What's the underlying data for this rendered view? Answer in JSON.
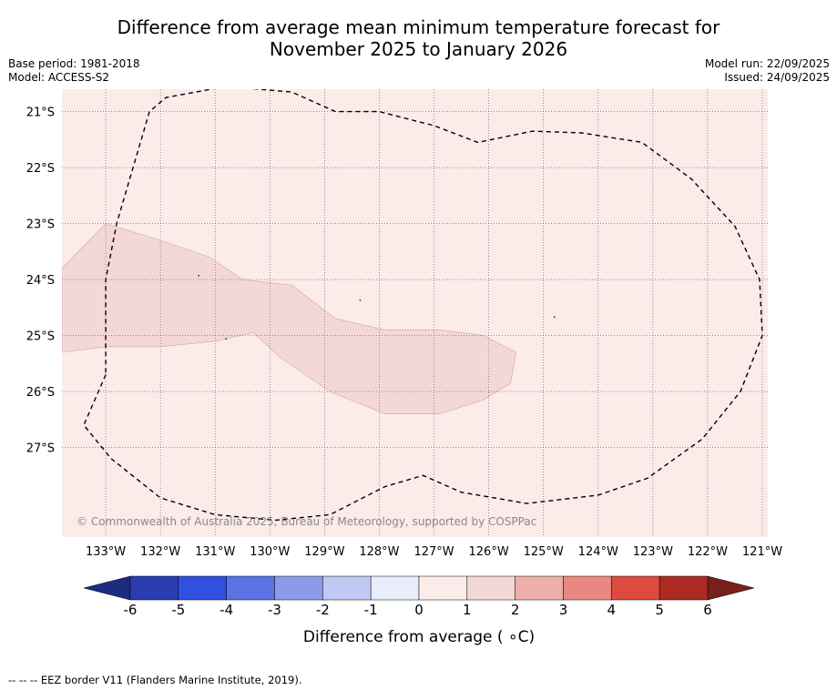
{
  "title": {
    "line1": "Difference from average mean minimum temperature forecast for",
    "line2": "November 2025 to January 2026"
  },
  "meta": {
    "base_period": "Base period: 1981-2018",
    "model": "Model: ACCESS-S2",
    "model_run": "Model run: 22/09/2025",
    "issued": "Issued: 24/09/2025"
  },
  "map": {
    "lon_range": [
      -133.8,
      -120.9
    ],
    "lat_range": [
      -28.6,
      -20.6
    ],
    "longitude_ticks": [
      {
        "value": -133,
        "label": "133°W"
      },
      {
        "value": -132,
        "label": "132°W"
      },
      {
        "value": -131,
        "label": "131°W"
      },
      {
        "value": -130,
        "label": "130°W"
      },
      {
        "value": -129,
        "label": "129°W"
      },
      {
        "value": -128,
        "label": "128°W"
      },
      {
        "value": -127,
        "label": "127°W"
      },
      {
        "value": -126,
        "label": "126°W"
      },
      {
        "value": -125,
        "label": "125°W"
      },
      {
        "value": -124,
        "label": "124°W"
      },
      {
        "value": -123,
        "label": "123°W"
      },
      {
        "value": -122,
        "label": "122°W"
      },
      {
        "value": -121,
        "label": "121°W"
      }
    ],
    "latitude_ticks": [
      {
        "value": -21,
        "label": "21°S"
      },
      {
        "value": -22,
        "label": "22°S"
      },
      {
        "value": -23,
        "label": "23°S"
      },
      {
        "value": -24,
        "label": "24°S"
      },
      {
        "value": -25,
        "label": "25°S"
      },
      {
        "value": -26,
        "label": "26°S"
      },
      {
        "value": -27,
        "label": "27°S"
      }
    ],
    "background_band": "0 to 1",
    "background_color": "#fbebe9",
    "warm_band": "1 to 2",
    "warm_band_color": "#f4d8d5",
    "warm_region": [
      [
        -133.8,
        -23.8
      ],
      [
        -133.0,
        -23.0
      ],
      [
        -132.0,
        -23.3
      ],
      [
        -131.1,
        -23.6
      ],
      [
        -130.5,
        -24.0
      ],
      [
        -129.6,
        -24.1
      ],
      [
        -128.8,
        -24.7
      ],
      [
        -127.9,
        -24.9
      ],
      [
        -126.9,
        -24.9
      ],
      [
        -126.1,
        -25.0
      ],
      [
        -125.5,
        -25.3
      ],
      [
        -125.6,
        -25.85
      ],
      [
        -126.1,
        -26.15
      ],
      [
        -126.9,
        -26.4
      ],
      [
        -127.9,
        -26.4
      ],
      [
        -128.9,
        -26.0
      ],
      [
        -129.8,
        -25.4
      ],
      [
        -130.3,
        -24.95
      ],
      [
        -131.0,
        -25.1
      ],
      [
        -132.0,
        -25.2
      ],
      [
        -133.0,
        -25.2
      ],
      [
        -133.8,
        -25.3
      ]
    ],
    "eez_border": [
      [
        -133.0,
        -25.7
      ],
      [
        -133.4,
        -26.6
      ],
      [
        -132.9,
        -27.2
      ],
      [
        -132.0,
        -27.9
      ],
      [
        -131.0,
        -28.2
      ],
      [
        -129.9,
        -28.3
      ],
      [
        -128.9,
        -28.2
      ],
      [
        -127.9,
        -27.7
      ],
      [
        -127.2,
        -27.5
      ],
      [
        -126.5,
        -27.8
      ],
      [
        -125.3,
        -28.0
      ],
      [
        -124.0,
        -27.85
      ],
      [
        -123.1,
        -27.55
      ],
      [
        -122.1,
        -26.85
      ],
      [
        -121.4,
        -26.0
      ],
      [
        -121.0,
        -25.0
      ],
      [
        -121.05,
        -24.0
      ],
      [
        -121.5,
        -23.05
      ],
      [
        -122.3,
        -22.2
      ],
      [
        -123.2,
        -21.55
      ],
      [
        -124.3,
        -21.38
      ],
      [
        -125.2,
        -21.35
      ],
      [
        -126.2,
        -21.55
      ],
      [
        -127.0,
        -21.25
      ],
      [
        -128.0,
        -21.0
      ],
      [
        -128.8,
        -21.0
      ],
      [
        -129.6,
        -20.65
      ],
      [
        -130.8,
        -20.55
      ],
      [
        -131.9,
        -20.75
      ],
      [
        -132.2,
        -21.0
      ],
      [
        -132.5,
        -22.0
      ],
      [
        -132.8,
        -23.0
      ],
      [
        -133.0,
        -24.0
      ],
      [
        -133.0,
        -25.0
      ],
      [
        -133.0,
        -25.7
      ]
    ],
    "small_islands": [
      [
        -131.3,
        -23.93
      ],
      [
        -128.35,
        -24.37
      ],
      [
        -124.8,
        -24.67
      ],
      [
        -130.8,
        -25.06
      ]
    ],
    "copyright": "© Commonwealth of Australia 2025, Bureau of Meteorology, supported by COSPPac"
  },
  "colorbar": {
    "label": "Difference from average ( ∘C)",
    "ticks": [
      "-6",
      "-5",
      "-4",
      "-3",
      "-2",
      "-1",
      "0",
      "1",
      "2",
      "3",
      "4",
      "5",
      "6"
    ],
    "bins": [
      {
        "range": "-6 to -5",
        "color": "#2a3db0"
      },
      {
        "range": "-5 to -4",
        "color": "#2f50e0"
      },
      {
        "range": "-4 to -3",
        "color": "#5c73e5"
      },
      {
        "range": "-3 to -2",
        "color": "#8a9bea"
      },
      {
        "range": "-2 to -1",
        "color": "#c1c8f3"
      },
      {
        "range": "-1 to 0",
        "color": "#e9ecfb"
      },
      {
        "range": "0 to 1",
        "color": "#fbebe9"
      },
      {
        "range": "1 to 2",
        "color": "#f4d8d5"
      },
      {
        "range": "2 to 3",
        "color": "#edafa9"
      },
      {
        "range": "3 to 4",
        "color": "#e88880"
      },
      {
        "range": "4 to 5",
        "color": "#dc4a40"
      },
      {
        "range": "5 to 6",
        "color": "#ad2a22"
      }
    ],
    "under_color": "#1c2d80",
    "over_color": "#7a201a"
  },
  "footer": "--  --  -- EEZ border V11 (Flanders Marine Institute, 2019)."
}
